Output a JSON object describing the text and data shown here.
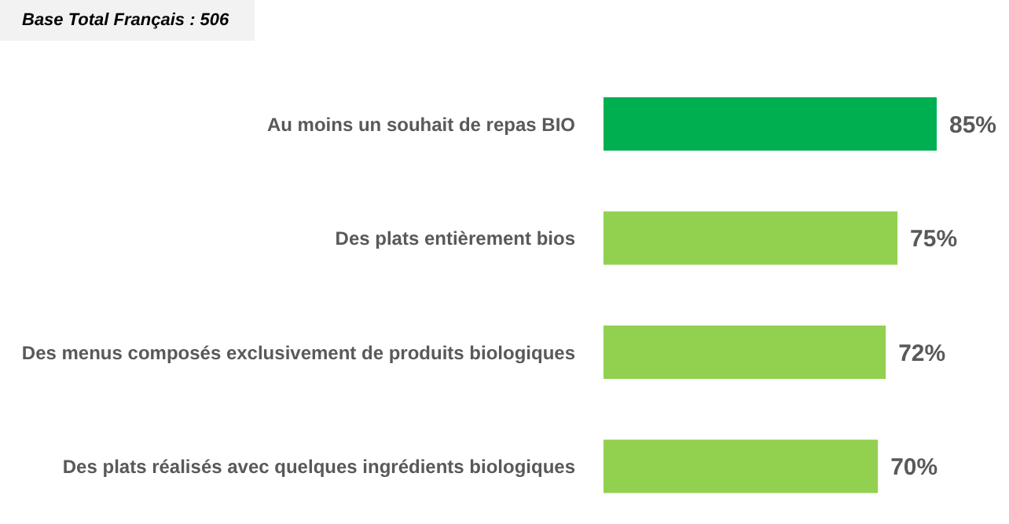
{
  "chart_data": {
    "type": "bar",
    "orientation": "horizontal",
    "categories": [
      "Au moins un souhait de repas BIO",
      "Des plats entièrement bios",
      "Des menus composés exclusivement de produits biologiques",
      "Des plats réalisés avec quelques ingrédients biologiques"
    ],
    "values": [
      85,
      75,
      72,
      70
    ],
    "value_labels": [
      "85%",
      "75%",
      "72%",
      "70%"
    ],
    "colors": [
      "#00b050",
      "#92d050",
      "#92d050",
      "#92d050"
    ],
    "annotations": [
      "Base Total Français : 506"
    ],
    "grid": false,
    "legend": false
  }
}
